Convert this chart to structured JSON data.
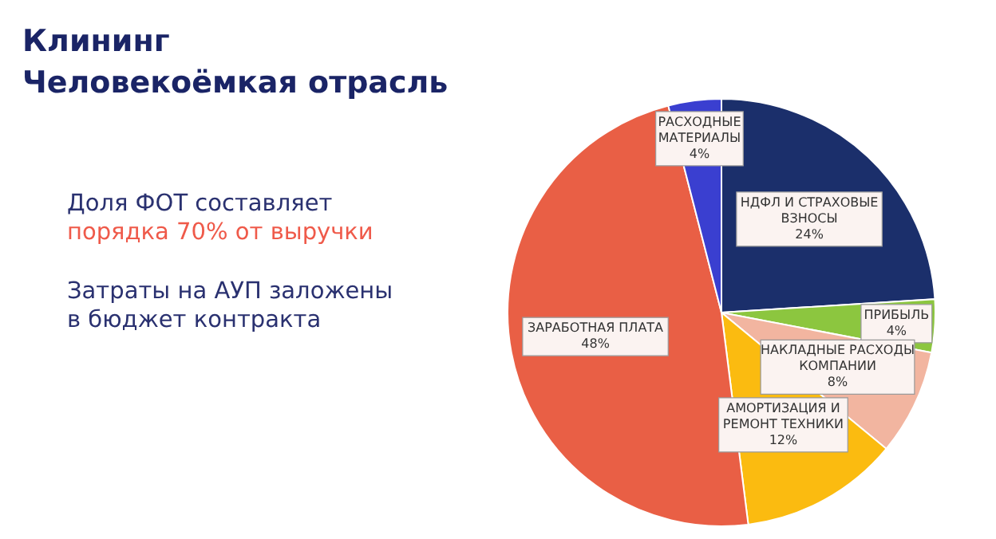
{
  "chart_data": {
    "type": "pie",
    "title": "Клининг",
    "subtitle": "Человекоёмкая отрасль",
    "categories": [
      "НДФЛ И СТРАХОВЫЕ ВЗНОСЫ",
      "ПРИБЫЛЬ",
      "НАКЛАДНЫЕ РАСХОДЫ КОМПАНИИ",
      "АМОРТИЗАЦИЯ И РЕМОНТ ТЕХНИКИ",
      "ЗАРАБОТНАЯ ПЛАТА",
      "РАСХОДНЫЕ МАТЕРИАЛЫ"
    ],
    "values": [
      24,
      4,
      8,
      12,
      48,
      4
    ],
    "value_labels": [
      "24%",
      "4%",
      "8%",
      "12%",
      "48%",
      "4%"
    ],
    "colors": [
      "#1b2f6b",
      "#8cc63f",
      "#f2b5a0",
      "#fbbb10",
      "#e95f45",
      "#3a3fd0"
    ],
    "annotations": [
      "Доля  ФОТ составляет",
      "порядка 70% от выручки",
      "Затраты на АУП заложены",
      "в бюджет контракта"
    ]
  }
}
